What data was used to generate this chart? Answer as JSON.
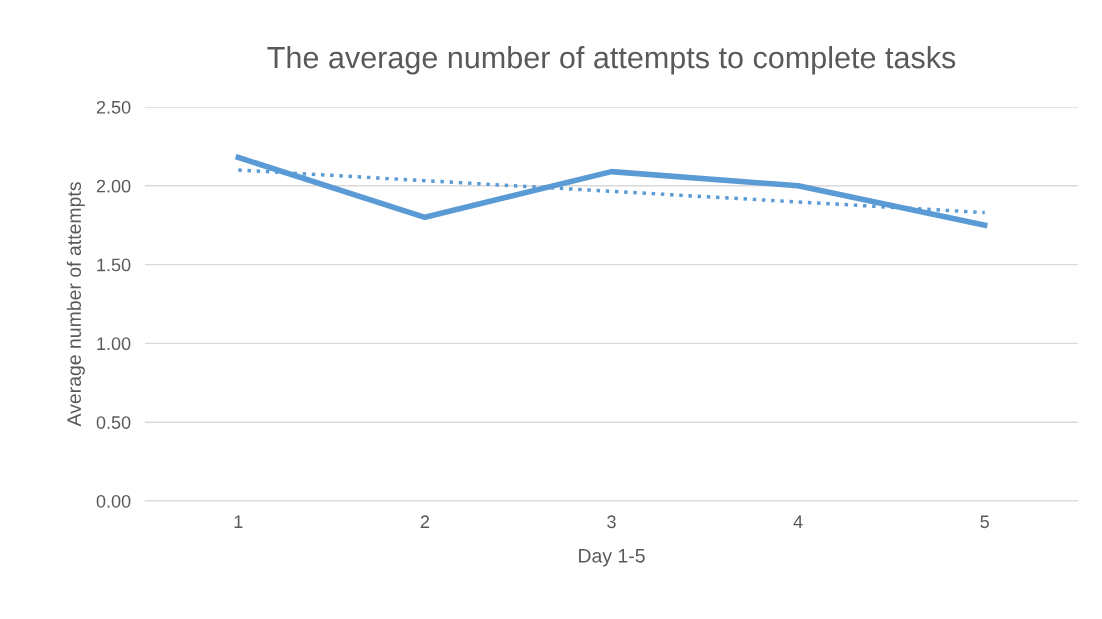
{
  "chart_data": {
    "type": "line",
    "title": "The average number of attempts to complete tasks",
    "xlabel": "Day 1-5",
    "ylabel": "Average number of attempts",
    "x": [
      1,
      2,
      3,
      4,
      5
    ],
    "series": [
      {
        "color": "#5b9bd5",
        "values": [
          2.18,
          1.8,
          2.09,
          2.0,
          1.75
        ],
        "line_style": "solid"
      },
      {
        "type": "line",
        "color": "#5b9bd5",
        "x": [
          1,
          5
        ],
        "values": [
          2.1,
          1.83
        ],
        "line_style": "dotted"
      }
    ],
    "xlim": [
      0.5,
      5.5
    ],
    "xticks": [
      1,
      2,
      3,
      4,
      5
    ],
    "ylim": [
      0,
      2.5
    ],
    "yticks": [
      {
        "value": 0,
        "label": "0.00"
      },
      {
        "value": 0.5,
        "label": "0.50"
      },
      {
        "value": 1,
        "label": "1.00"
      },
      {
        "value": 1.5,
        "label": "1.50"
      },
      {
        "value": 2,
        "label": "2.00"
      },
      {
        "value": 2.5,
        "label": "2.50"
      }
    ],
    "grid": "y"
  }
}
